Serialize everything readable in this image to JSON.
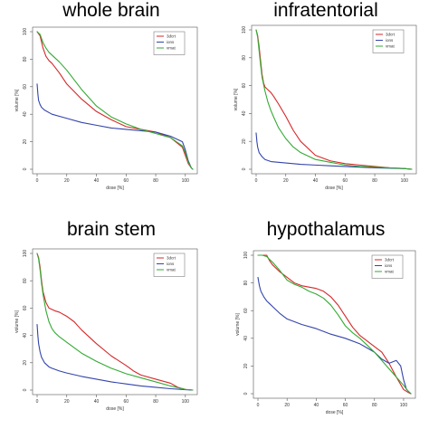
{
  "figure": {
    "background": "#ffffff"
  },
  "chart_data": [
    {
      "type": "line",
      "title": "whole brain",
      "xlabel": "dose [%]",
      "ylabel": "volume [%]",
      "xlim": [
        0,
        105
      ],
      "ylim": [
        0,
        100
      ],
      "xticks": [
        0,
        20,
        40,
        60,
        80,
        100
      ],
      "yticks": [
        0,
        20,
        40,
        60,
        80,
        100
      ],
      "legend": "top-right",
      "series": [
        {
          "name": "3dcrt",
          "color": "#d62728",
          "x": [
            0,
            2,
            4,
            6,
            8,
            10,
            15,
            20,
            30,
            40,
            50,
            60,
            70,
            80,
            90,
            98,
            100,
            102,
            104,
            105
          ],
          "y": [
            100,
            97,
            88,
            82,
            79,
            77,
            70,
            62,
            51,
            42,
            36,
            31,
            29,
            27,
            23,
            16,
            10,
            4,
            1,
            0
          ]
        },
        {
          "name": "ions",
          "color": "#3344aa",
          "x": [
            0,
            0.5,
            1,
            2,
            3,
            5,
            10,
            20,
            30,
            40,
            50,
            60,
            70,
            80,
            90,
            98,
            100,
            102,
            104,
            105
          ],
          "y": [
            62,
            55,
            50,
            47,
            45,
            43,
            40,
            37,
            34,
            32,
            30,
            29,
            28,
            27,
            24,
            20,
            14,
            6,
            1,
            0
          ]
        },
        {
          "name": "vmat",
          "color": "#33aa33",
          "x": [
            0,
            2,
            4,
            6,
            8,
            10,
            15,
            20,
            30,
            40,
            50,
            60,
            70,
            80,
            90,
            98,
            100,
            102,
            104,
            105
          ],
          "y": [
            100,
            98,
            92,
            88,
            85,
            83,
            78,
            72,
            58,
            46,
            38,
            33,
            29,
            26,
            23,
            17,
            12,
            5,
            1,
            0
          ]
        }
      ]
    },
    {
      "type": "line",
      "title": "infratentorial",
      "xlabel": "dose [%]",
      "ylabel": "volume [%]",
      "xlim": [
        0,
        105
      ],
      "ylim": [
        0,
        100
      ],
      "xticks": [
        0,
        20,
        40,
        60,
        80,
        100
      ],
      "yticks": [
        0,
        20,
        40,
        60,
        80,
        100
      ],
      "legend": "top-right",
      "series": [
        {
          "name": "3dcrt",
          "color": "#d62728",
          "x": [
            0,
            1,
            2,
            3,
            4,
            5,
            6,
            8,
            10,
            12,
            15,
            20,
            25,
            30,
            40,
            50,
            60,
            70,
            80,
            90,
            100,
            105
          ],
          "y": [
            100,
            96,
            88,
            78,
            68,
            62,
            59,
            57,
            55,
            52,
            47,
            38,
            28,
            20,
            10,
            6,
            4,
            3,
            2,
            1,
            0.5,
            0
          ]
        },
        {
          "name": "ions",
          "color": "#3344aa",
          "x": [
            0,
            0.5,
            1,
            2,
            4,
            6,
            10,
            15,
            20,
            30,
            40,
            50,
            60,
            70,
            80,
            90,
            100,
            105
          ],
          "y": [
            26,
            20,
            16,
            12,
            9,
            7,
            5.5,
            5,
            4.5,
            3.5,
            3,
            2.5,
            2,
            1.5,
            1,
            0.8,
            0.4,
            0
          ]
        },
        {
          "name": "vmat",
          "color": "#33aa33",
          "x": [
            0,
            1,
            2,
            3,
            4,
            6,
            8,
            10,
            12,
            15,
            20,
            25,
            30,
            40,
            50,
            60,
            70,
            80,
            90,
            100,
            105
          ],
          "y": [
            100,
            95,
            85,
            75,
            66,
            56,
            48,
            42,
            37,
            30,
            22,
            16,
            12,
            7,
            5,
            3,
            2,
            1.5,
            1,
            0.5,
            0
          ]
        }
      ]
    },
    {
      "type": "line",
      "title": "brain stem",
      "xlabel": "dose [%]",
      "ylabel": "volume [%]",
      "xlim": [
        0,
        105
      ],
      "ylim": [
        0,
        100
      ],
      "xticks": [
        0,
        20,
        40,
        60,
        80,
        100
      ],
      "yticks": [
        0,
        20,
        40,
        60,
        80,
        100
      ],
      "legend": "top-right",
      "series": [
        {
          "name": "3dcrt",
          "color": "#d62728",
          "x": [
            0,
            1,
            2,
            3,
            4,
            6,
            8,
            10,
            12,
            15,
            20,
            25,
            30,
            40,
            50,
            60,
            65,
            70,
            80,
            90,
            95,
            100,
            105
          ],
          "y": [
            100,
            97,
            90,
            80,
            72,
            64,
            60,
            59,
            58,
            57,
            54,
            50,
            44,
            34,
            25,
            18,
            14,
            11,
            8,
            5,
            2,
            0.5,
            0
          ]
        },
        {
          "name": "ions",
          "color": "#3344aa",
          "x": [
            0,
            0.5,
            1,
            2,
            3,
            5,
            8,
            10,
            15,
            20,
            30,
            40,
            50,
            60,
            70,
            80,
            90,
            100,
            105
          ],
          "y": [
            48,
            40,
            34,
            28,
            24,
            20,
            17,
            16,
            14,
            12.5,
            10,
            8,
            6,
            4.5,
            3,
            2,
            1,
            0.3,
            0
          ]
        },
        {
          "name": "vmat",
          "color": "#33aa33",
          "x": [
            0,
            1,
            2,
            3,
            4,
            6,
            8,
            10,
            12,
            15,
            20,
            25,
            30,
            40,
            50,
            60,
            70,
            80,
            90,
            100,
            105
          ],
          "y": [
            100,
            96,
            88,
            78,
            70,
            58,
            50,
            45,
            42,
            39,
            35,
            31,
            27,
            21,
            16,
            12,
            9,
            6,
            3,
            0.5,
            0
          ]
        }
      ]
    },
    {
      "type": "line",
      "title": "hypothalamus",
      "xlabel": "dose [%]",
      "ylabel": "volume [%]",
      "xlim": [
        0,
        105
      ],
      "ylim": [
        0,
        100
      ],
      "xticks": [
        0,
        20,
        40,
        60,
        80,
        100
      ],
      "yticks": [
        0,
        20,
        40,
        60,
        80,
        100
      ],
      "legend": "top-right",
      "series": [
        {
          "name": "3dcrt",
          "color": "#d62728",
          "x": [
            0,
            3,
            6,
            8,
            10,
            12,
            15,
            20,
            25,
            30,
            35,
            40,
            45,
            50,
            55,
            60,
            65,
            70,
            75,
            80,
            85,
            90,
            95,
            100,
            103,
            105
          ],
          "y": [
            100,
            100,
            100,
            96,
            93,
            91,
            88,
            84,
            80,
            78,
            77,
            76,
            74,
            70,
            64,
            56,
            48,
            42,
            38,
            34,
            30,
            22,
            12,
            3,
            1,
            0
          ]
        },
        {
          "name": "ions",
          "color": "#3344aa",
          "x": [
            0,
            1,
            2,
            4,
            6,
            8,
            10,
            15,
            20,
            30,
            40,
            50,
            60,
            70,
            80,
            85,
            90,
            95,
            98,
            100,
            102,
            105
          ],
          "y": [
            84,
            78,
            74,
            70,
            67,
            65,
            63,
            58,
            54,
            50,
            47,
            43,
            40,
            36,
            30,
            25,
            22,
            24,
            20,
            10,
            3,
            0
          ]
        },
        {
          "name": "vmat",
          "color": "#33aa33",
          "x": [
            0,
            3,
            6,
            8,
            10,
            15,
            20,
            25,
            30,
            35,
            40,
            45,
            50,
            55,
            60,
            65,
            70,
            75,
            80,
            85,
            90,
            95,
            100,
            103,
            105
          ],
          "y": [
            100,
            100,
            99,
            97,
            95,
            89,
            82,
            79,
            77,
            74,
            72,
            69,
            64,
            57,
            49,
            44,
            40,
            35,
            30,
            24,
            18,
            12,
            6,
            2,
            0
          ]
        }
      ]
    }
  ]
}
